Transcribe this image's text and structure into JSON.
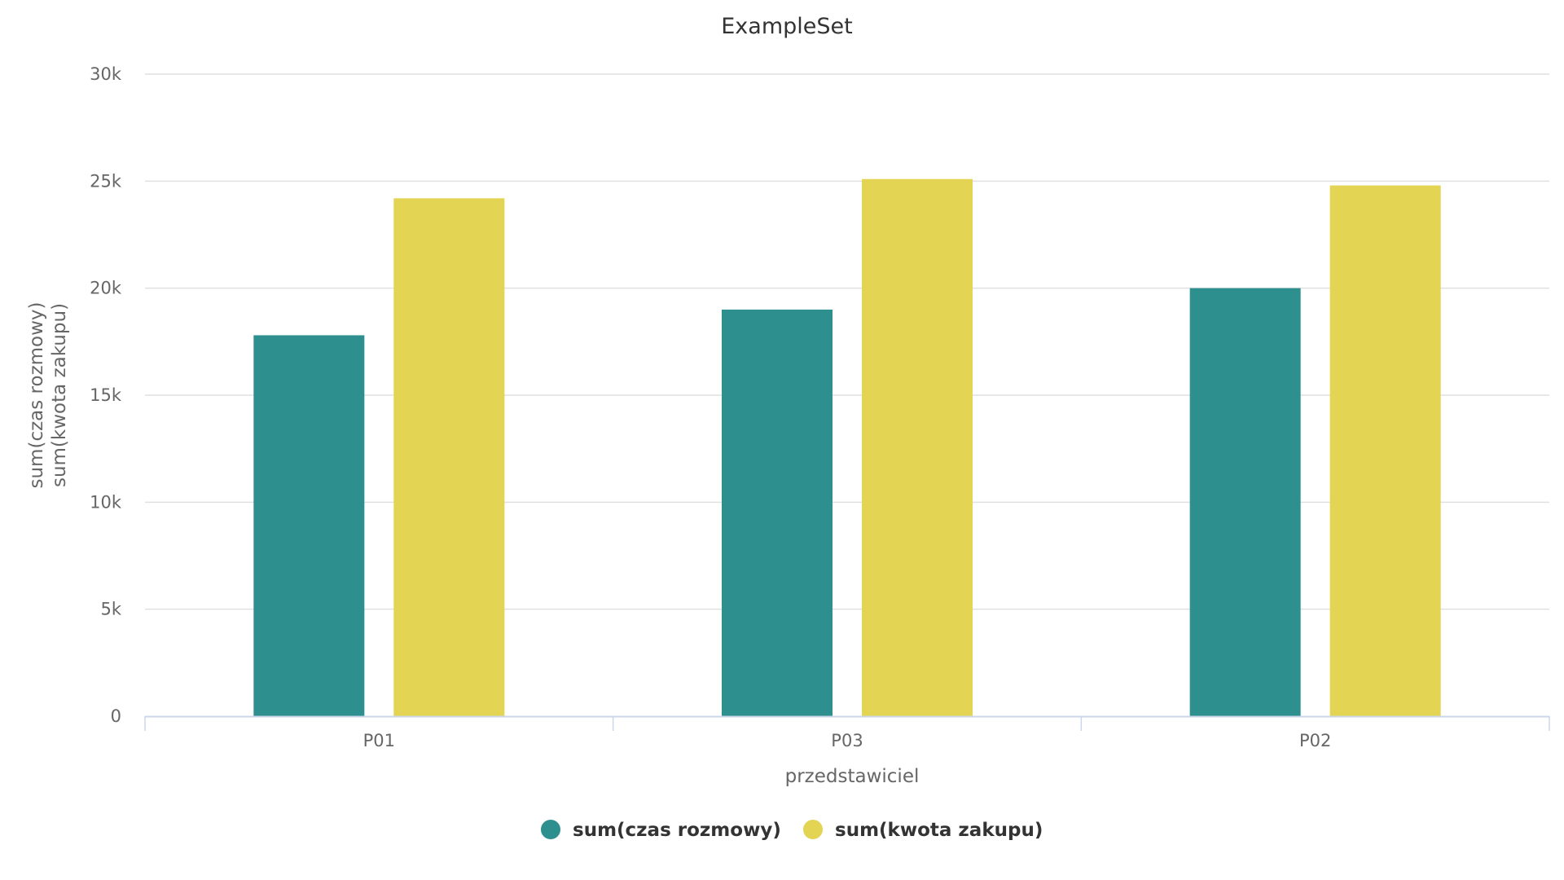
{
  "chart_data": {
    "type": "bar",
    "title": "ExampleSet",
    "xlabel": "przedstawiciel",
    "ylabel": [
      "sum(czas rozmowy)",
      "sum(kwota zakupu)"
    ],
    "categories": [
      "P01",
      "P03",
      "P02"
    ],
    "series": [
      {
        "name": "sum(czas rozmowy)",
        "color": "#2e8f8f",
        "values": [
          17800,
          19000,
          20000
        ]
      },
      {
        "name": "sum(kwota zakupu)",
        "color": "#e3d453",
        "values": [
          24200,
          25100,
          24800
        ]
      }
    ],
    "ylim": [
      0,
      30000
    ],
    "yticks": [
      0,
      5000,
      10000,
      15000,
      20000,
      25000,
      30000
    ],
    "ytick_labels": [
      "0",
      "5k",
      "10k",
      "15k",
      "20k",
      "25k",
      "30k"
    ],
    "grid": true,
    "legend": "bottom-center"
  },
  "colors": {
    "grid": "#e0e0e0",
    "axis": "#ccd6eb",
    "text": "#666666",
    "title": "#333333"
  }
}
